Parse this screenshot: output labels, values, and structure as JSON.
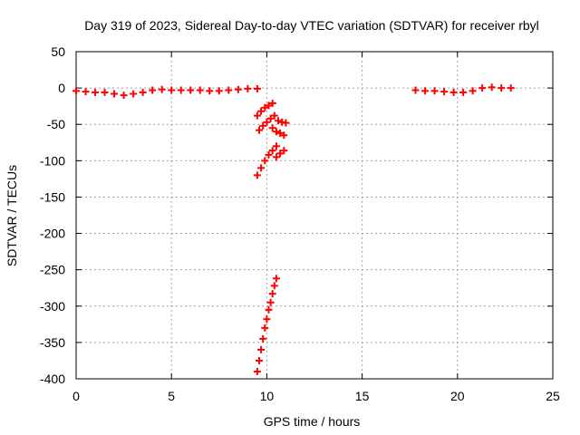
{
  "chart_data": {
    "type": "scatter",
    "title": "Day 319 of 2023, Sidereal Day-to-day VTEC variation (SDTVAR) for receiver rbyl",
    "xlabel": "GPS time / hours",
    "ylabel": "SDTVAR / TECUs",
    "xlim": [
      0,
      25
    ],
    "ylim": [
      -400,
      50
    ],
    "x_ticks": [
      0,
      5,
      10,
      15,
      20,
      25
    ],
    "y_ticks": [
      50,
      0,
      -50,
      -100,
      -150,
      -200,
      -250,
      -300,
      -350,
      -400
    ],
    "grid": true,
    "marker": "+",
    "colors": {
      "points": "#ff0000",
      "grid": "#a0a0a0",
      "axes": "#000000"
    },
    "series": [
      {
        "segments": [
          {
            "x": [
              0.0,
              0.5,
              1.0,
              1.5,
              2.0,
              2.5,
              3.0,
              3.5,
              4.0,
              4.5,
              5.0,
              5.5,
              6.0,
              6.5,
              7.0,
              7.5,
              8.0,
              8.5,
              9.0,
              9.5
            ],
            "y": [
              -4,
              -5,
              -6,
              -6,
              -8,
              -10,
              -8,
              -6,
              -3,
              -2,
              -3,
              -3,
              -3,
              -3,
              -4,
              -4,
              -3,
              -2,
              -1,
              -1
            ]
          },
          {
            "x": [
              9.5,
              9.7,
              9.9,
              10.1,
              10.3
            ],
            "y": [
              -38,
              -32,
              -27,
              -24,
              -21
            ]
          },
          {
            "x": [
              9.6,
              9.8,
              10.0,
              10.2,
              10.4
            ],
            "y": [
              -58,
              -52,
              -47,
              -42,
              -38
            ]
          },
          {
            "x": [
              9.5,
              9.7,
              9.9,
              10.1,
              10.3,
              10.5
            ],
            "y": [
              -120,
              -110,
              -100,
              -92,
              -86,
              -80
            ]
          },
          {
            "x": [
              10.3,
              10.5,
              10.7,
              10.9
            ],
            "y": [
              -55,
              -60,
              -62,
              -65
            ]
          },
          {
            "x": [
              10.6,
              10.8,
              11.0
            ],
            "y": [
              -45,
              -47,
              -48
            ]
          },
          {
            "x": [
              10.5,
              10.7,
              10.9
            ],
            "y": [
              -95,
              -90,
              -86
            ]
          },
          {
            "x": [
              9.5,
              9.6,
              9.7,
              9.8,
              9.9,
              10.0,
              10.1,
              10.2,
              10.3,
              10.4,
              10.5
            ],
            "y": [
              -390,
              -375,
              -360,
              -345,
              -330,
              -318,
              -305,
              -295,
              -283,
              -272,
              -262
            ]
          },
          {
            "x": [
              17.8,
              18.3,
              18.8,
              19.3,
              19.8,
              20.3,
              20.8,
              21.3,
              21.8,
              22.3,
              22.8
            ],
            "y": [
              -3,
              -4,
              -4,
              -5,
              -6,
              -6,
              -4,
              0,
              1,
              0,
              0
            ]
          }
        ]
      }
    ]
  }
}
